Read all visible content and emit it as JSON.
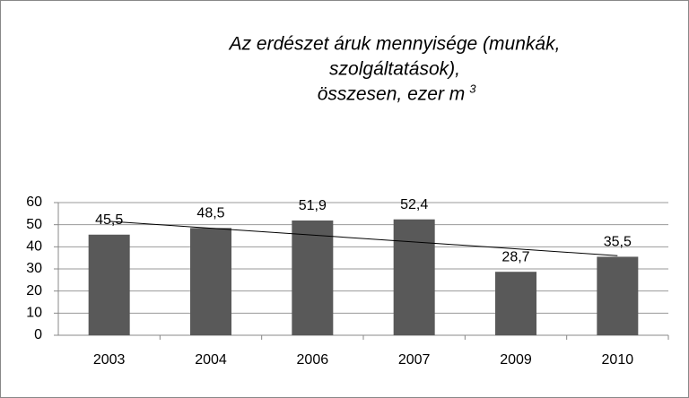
{
  "chart_data": {
    "type": "bar",
    "title": [
      "Az erdészet áruk mennyisége (munkák,",
      "szolgáltatások),",
      "összesen, ezer m"
    ],
    "title_superscript": "3",
    "categories": [
      "2003",
      "2004",
      "2006",
      "2007",
      "2009",
      "2010"
    ],
    "values": [
      45.5,
      48.5,
      51.9,
      52.4,
      28.7,
      35.5
    ],
    "value_labels": [
      "45,5",
      "48,5",
      "51,9",
      "52,4",
      "28,7",
      "35,5"
    ],
    "color": "#595959",
    "ylim": [
      0,
      60
    ],
    "yticks": [
      0,
      10,
      20,
      30,
      40,
      50,
      60
    ],
    "grid": true,
    "trendline": "linear"
  }
}
